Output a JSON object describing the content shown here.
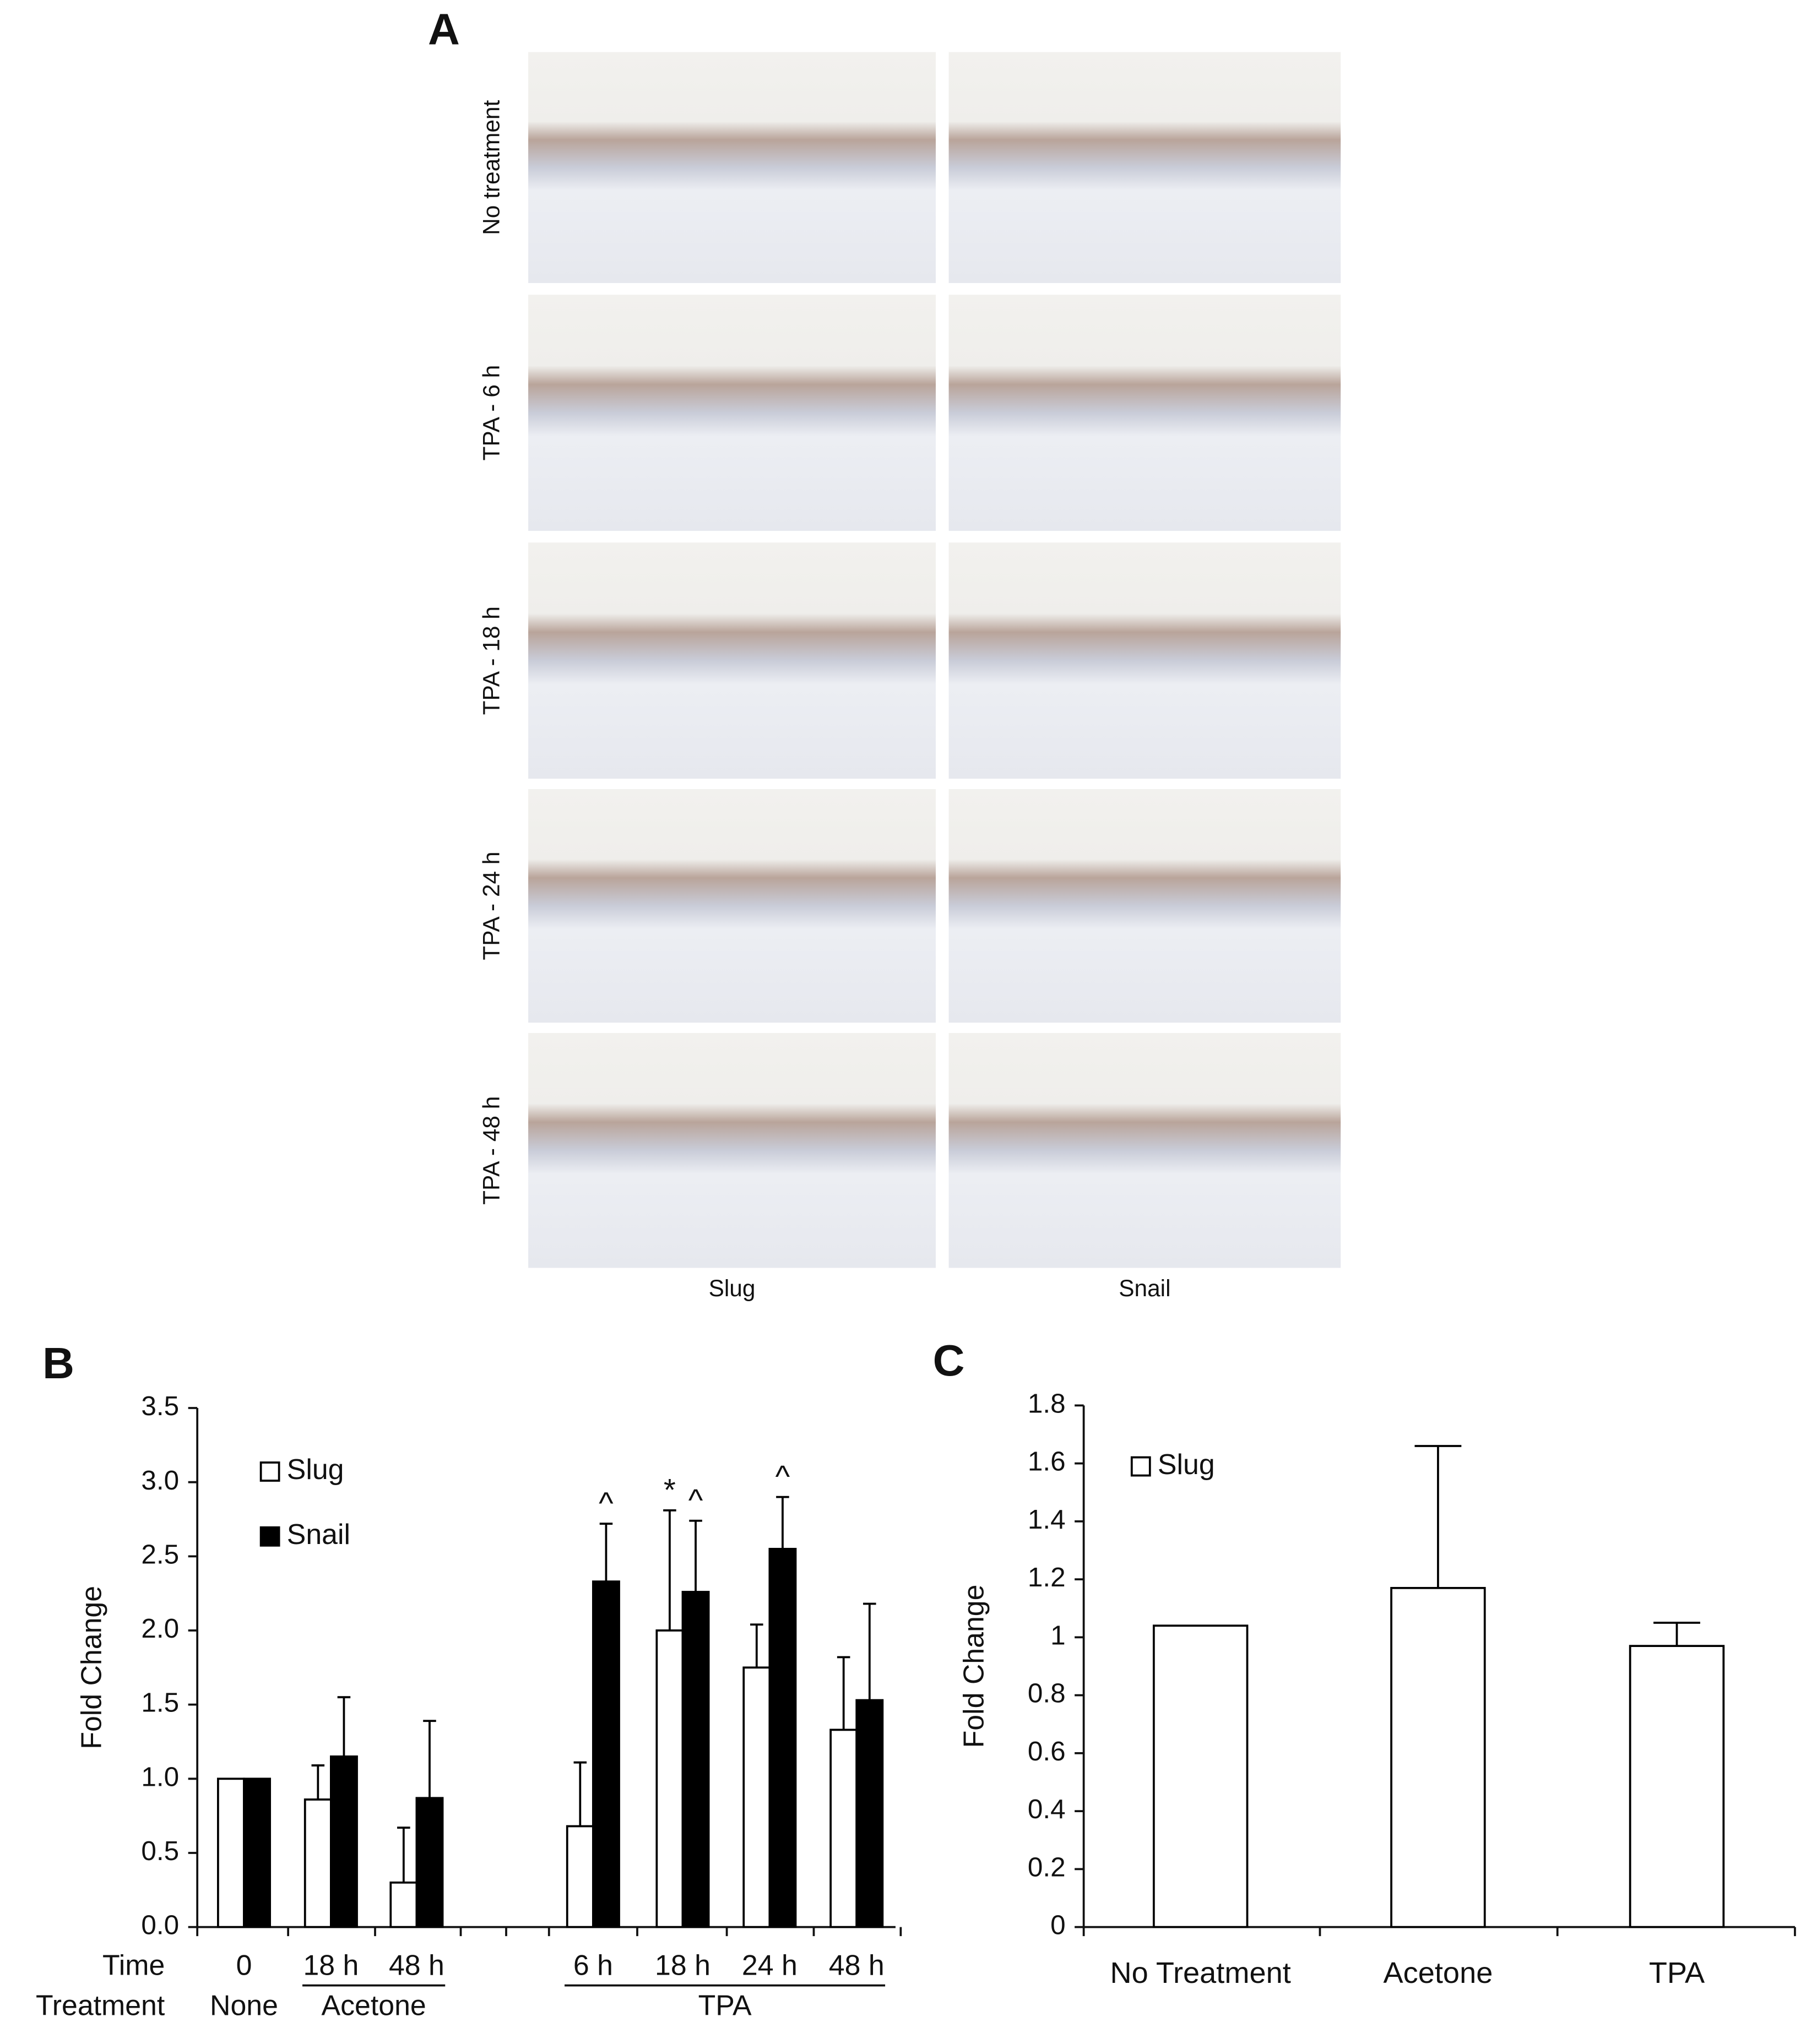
{
  "panel_a": {
    "label": "A",
    "rows": [
      "No treatment",
      "TPA - 6 h",
      "TPA - 18 h",
      "TPA - 24 h",
      "TPA - 48 h"
    ],
    "columns": [
      "Slug",
      "Snail"
    ]
  },
  "chart_data": [
    {
      "type": "bar",
      "panel": "B",
      "y_label": "Fold Change",
      "category_label": "Time",
      "group_label": "Treatment",
      "categories": [
        "0",
        "18 h",
        "48 h",
        "6 h",
        "18 h",
        "24 h",
        "48 h"
      ],
      "treatments": [
        "None",
        "Acetone",
        "Acetone",
        "TPA",
        "TPA",
        "TPA",
        "TPA"
      ],
      "series": [
        {
          "name": "Slug",
          "color": "#ffffff",
          "values": [
            1.0,
            0.86,
            0.3,
            0.68,
            2.0,
            1.75,
            1.33
          ],
          "errors": [
            null,
            0.23,
            0.37,
            0.43,
            0.81,
            0.29,
            0.49
          ],
          "markers": [
            null,
            null,
            null,
            null,
            "*",
            null,
            null
          ]
        },
        {
          "name": "Snail",
          "color": "#000000",
          "values": [
            1.0,
            1.15,
            0.87,
            2.33,
            2.26,
            2.55,
            1.53
          ],
          "errors": [
            null,
            0.4,
            0.52,
            0.39,
            0.48,
            0.35,
            0.65
          ],
          "markers": [
            null,
            null,
            null,
            "^",
            "^",
            "^",
            null
          ]
        }
      ],
      "ylim": [
        0,
        3.5
      ],
      "yticks": [
        {
          "value": 0,
          "label": "0.0"
        },
        {
          "value": 0.5,
          "label": "0.5"
        },
        {
          "value": 1,
          "label": "1.0"
        },
        {
          "value": 1.5,
          "label": "1.5"
        },
        {
          "value": 2,
          "label": "2.0"
        },
        {
          "value": 2.5,
          "label": "2.5"
        },
        {
          "value": 3,
          "label": "3.0"
        },
        {
          "value": 3.5,
          "label": "3.5"
        }
      ]
    },
    {
      "type": "bar",
      "panel": "C",
      "y_label": "Fold Change",
      "categories": [
        "No Treatment",
        "Acetone",
        "TPA"
      ],
      "series": [
        {
          "name": "Slug",
          "color": "#ffffff",
          "values": [
            1.04,
            1.17,
            0.97
          ],
          "errors": [
            null,
            0.49,
            0.08
          ]
        }
      ],
      "ylim": [
        0,
        1.8
      ],
      "yticks": [
        0,
        0.2,
        0.4,
        0.6,
        0.8,
        1,
        1.2,
        1.4,
        1.6,
        1.8
      ]
    }
  ]
}
